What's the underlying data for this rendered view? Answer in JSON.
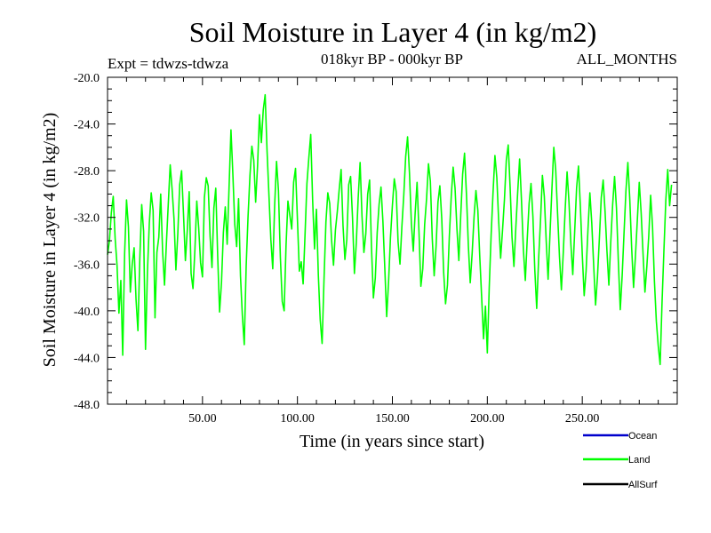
{
  "chart_data": {
    "type": "line",
    "title": "Soil Moisture in Layer 4 (in kg/m2)",
    "subtitle_left": "Expt = tdwzs-tdwza",
    "subtitle_center": "018kyr BP - 000kyr BP",
    "subtitle_right": "ALL_MONTHS",
    "xlabel": "Time (in years since start)",
    "ylabel": "Soil Moisture in Layer 4 (in kg/m2)",
    "xlim": [
      0,
      300
    ],
    "ylim": [
      -48,
      -20
    ],
    "x_ticks": [
      50,
      100,
      150,
      200,
      250
    ],
    "x_tick_labels": [
      "50.00",
      "100.00",
      "150.00",
      "200.00",
      "250.00"
    ],
    "y_ticks": [
      -20,
      -24,
      -28,
      -32,
      -36,
      -40,
      -44,
      -48
    ],
    "y_tick_labels": [
      "-20.0",
      "-24.0",
      "-28.0",
      "-32.0",
      "-36.0",
      "-40.0",
      "-44.0",
      "-48.0"
    ],
    "legend": [
      {
        "name": "Ocean",
        "color": "#0000cc"
      },
      {
        "name": "Land",
        "color": "#00ff00"
      },
      {
        "name": "AllSurf",
        "color": "#000000"
      }
    ],
    "series": [
      {
        "name": "Land",
        "color": "#00ff00",
        "x_start": 0,
        "x_step": 1,
        "values": [
          -35.2,
          -34.0,
          -31.6,
          -30.2,
          -33.8,
          -36.1,
          -40.2,
          -37.4,
          -43.8,
          -35.1,
          -30.5,
          -32.8,
          -38.4,
          -36.0,
          -34.6,
          -39.0,
          -41.7,
          -35.5,
          -30.9,
          -33.2,
          -43.3,
          -36.7,
          -32.5,
          -29.9,
          -31.4,
          -40.6,
          -35.0,
          -33.7,
          -30.0,
          -34.9,
          -37.8,
          -34.2,
          -30.8,
          -27.5,
          -29.6,
          -32.1,
          -36.5,
          -33.4,
          -29.2,
          -28.0,
          -31.7,
          -35.7,
          -33.1,
          -29.8,
          -36.8,
          -38.1,
          -34.8,
          -30.6,
          -32.9,
          -35.9,
          -37.1,
          -30.3,
          -28.6,
          -29.3,
          -33.6,
          -36.3,
          -31.2,
          -29.5,
          -35.3,
          -40.1,
          -37.6,
          -33.3,
          -31.1,
          -34.3,
          -29.4,
          -24.5,
          -28.3,
          -32.6,
          -34.5,
          -30.4,
          -37.0,
          -40.4,
          -42.9,
          -36.2,
          -31.9,
          -28.4,
          -25.9,
          -27.1,
          -30.7,
          -27.6,
          -23.2,
          -25.6,
          -22.8,
          -21.5,
          -26.3,
          -30.1,
          -33.9,
          -36.4,
          -31.0,
          -27.2,
          -29.7,
          -35.4,
          -39.2,
          -40.0,
          -34.4,
          -30.6,
          -31.8,
          -33.0,
          -29.0,
          -27.8,
          -32.2,
          -36.6,
          -35.8,
          -37.7,
          -33.5,
          -29.1,
          -26.9,
          -24.9,
          -30.5,
          -34.7,
          -31.3,
          -36.9,
          -40.8,
          -42.8,
          -37.3,
          -32.4,
          -29.9,
          -30.8,
          -34.0,
          -36.1,
          -33.1,
          -31.5,
          -29.6,
          -27.9,
          -32.7,
          -35.6,
          -33.9,
          -29.2,
          -28.5,
          -32.0,
          -36.8,
          -34.2,
          -30.3,
          -27.3,
          -31.9,
          -35.0,
          -33.4,
          -30.0,
          -28.8,
          -34.6,
          -38.9,
          -37.2,
          -33.3,
          -30.9,
          -29.4,
          -32.3,
          -36.3,
          -40.5,
          -37.5,
          -33.7,
          -31.0,
          -28.7,
          -29.8,
          -34.1,
          -36.0,
          -32.8,
          -30.1,
          -26.8,
          -25.1,
          -28.2,
          -32.5,
          -34.9,
          -31.6,
          -29.0,
          -33.2,
          -37.9,
          -36.4,
          -32.6,
          -30.4,
          -27.4,
          -28.9,
          -33.8,
          -37.0,
          -34.5,
          -30.7,
          -29.3,
          -32.1,
          -36.7,
          -39.4,
          -37.8,
          -33.6,
          -30.2,
          -27.7,
          -29.5,
          -33.0,
          -35.7,
          -31.8,
          -28.3,
          -26.5,
          -30.0,
          -34.4,
          -37.6,
          -35.1,
          -32.0,
          -29.7,
          -31.4,
          -35.3,
          -38.8,
          -42.4,
          -39.6,
          -43.6,
          -38.0,
          -33.5,
          -29.9,
          -26.7,
          -28.6,
          -32.4,
          -35.5,
          -33.1,
          -30.5,
          -27.1,
          -25.8,
          -29.4,
          -33.7,
          -36.2,
          -32.9,
          -29.8,
          -27.0,
          -30.6,
          -34.8,
          -37.4,
          -33.9,
          -30.8,
          -29.1,
          -31.9,
          -36.5,
          -39.8,
          -35.6,
          -32.3,
          -28.4,
          -30.2,
          -34.0,
          -37.3,
          -33.4,
          -29.6,
          -26.0,
          -27.9,
          -31.7,
          -35.4,
          -38.2,
          -35.0,
          -31.3,
          -28.1,
          -30.7,
          -34.3,
          -36.9,
          -33.2,
          -29.5,
          -27.6,
          -31.1,
          -35.2,
          -38.7,
          -36.6,
          -33.0,
          -29.9,
          -32.5,
          -36.1,
          -39.5,
          -37.1,
          -33.8,
          -30.3,
          -28.8,
          -31.5,
          -34.9,
          -37.8,
          -34.1,
          -30.9,
          -28.5,
          -31.2,
          -35.8,
          -39.9,
          -37.0,
          -33.3,
          -29.7,
          -27.3,
          -30.4,
          -34.6,
          -38.0,
          -35.3,
          -32.2,
          -29.0,
          -31.6,
          -35.1,
          -38.4,
          -36.2,
          -33.6,
          -30.1,
          -32.8,
          -37.5,
          -40.9,
          -43.0,
          -44.6,
          -39.3,
          -34.8,
          -30.5,
          -27.9,
          -31.0,
          -29.2
        ]
      }
    ]
  }
}
